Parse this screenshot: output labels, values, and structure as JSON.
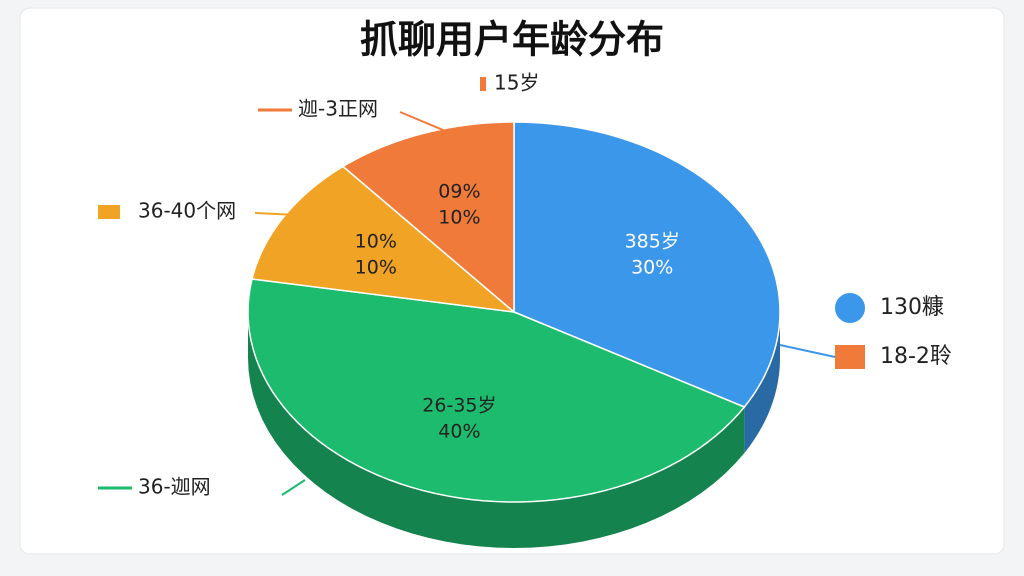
{
  "chart_data": {
    "type": "pie",
    "title": "抓聊用户年龄分布",
    "categories": [
      "385岁",
      "26-35岁",
      "10%",
      "09%"
    ],
    "values": [
      30,
      40,
      10,
      10
    ],
    "value_labels": [
      "30%",
      "40%",
      "10%",
      "10%"
    ],
    "colors": [
      "#3b97ea",
      "#1dbb6e",
      "#f0a324",
      "#ef7a3a"
    ],
    "callouts": [
      {
        "text": "15岁",
        "color": "#ef7a3a"
      },
      {
        "text": "迦-3正网",
        "color": "#ef7a3a"
      },
      {
        "text": "36-40个网",
        "color": "#f0a324"
      },
      {
        "text": "36-迦网",
        "color": "#1dbb6e"
      }
    ],
    "legend": [
      {
        "text": "130糠",
        "color": "#3b97ea"
      },
      {
        "text": "18-2聆",
        "color": "#ef7a3a"
      }
    ]
  }
}
